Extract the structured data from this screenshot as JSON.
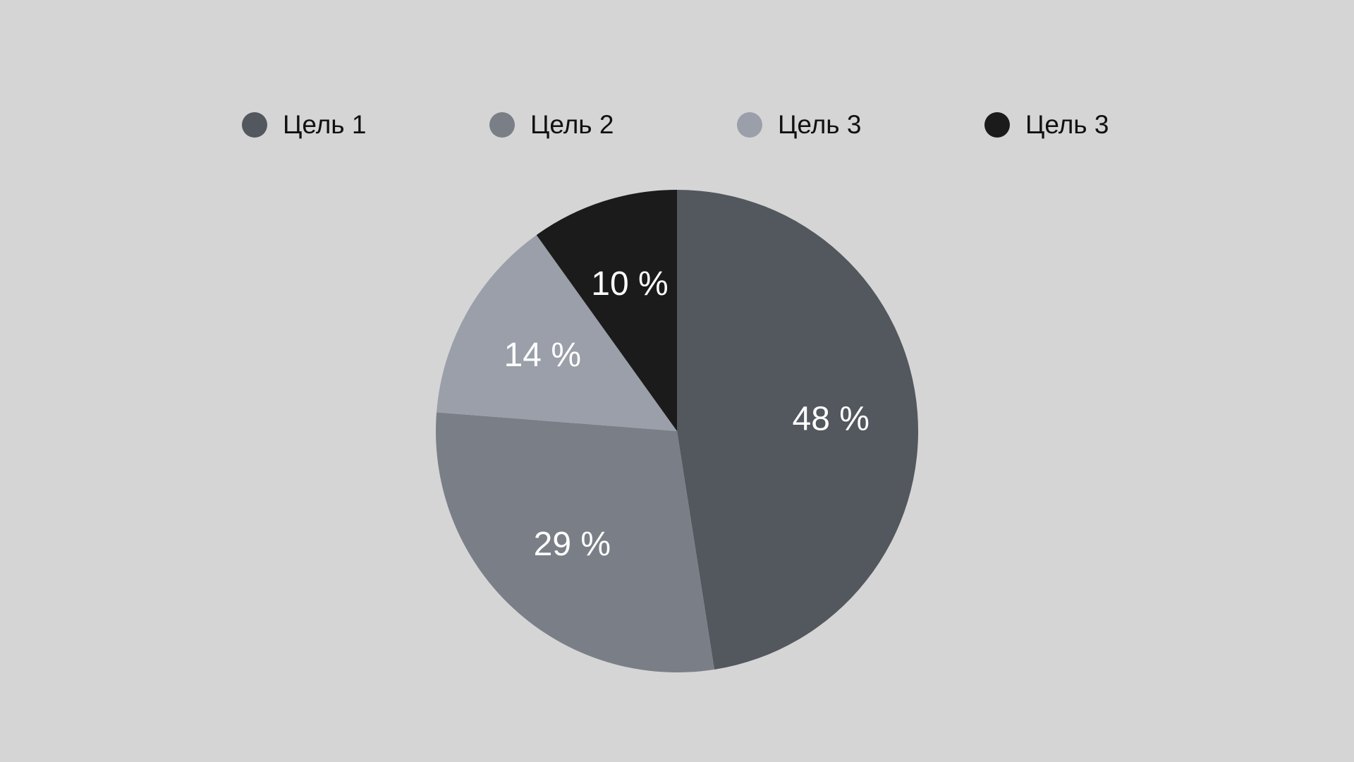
{
  "chart_data": {
    "type": "pie",
    "title": "",
    "start_angle_deg": -90,
    "direction": "clockwise",
    "legend_position": "top",
    "slices": [
      {
        "label": "Цель 1",
        "value": 48,
        "value_label": "48 %",
        "color": "#53575e"
      },
      {
        "label": "Цель 2",
        "value": 29,
        "value_label": "29 %",
        "color": "#7a7f87"
      },
      {
        "label": "Цель 3",
        "value": 14,
        "value_label": "14 %",
        "color": "#9a9fa9"
      },
      {
        "label": "Цель 3",
        "value": 10,
        "value_label": "10 %",
        "color": "#1b1b1b"
      }
    ]
  }
}
